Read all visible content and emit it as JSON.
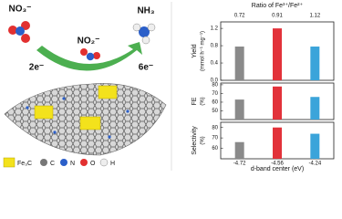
{
  "illustration": {
    "species": [
      "NO₃⁻",
      "NO₂⁻",
      "NH₃"
    ],
    "electrons": [
      "2e⁻",
      "6e⁻"
    ],
    "legend": [
      "Fe₃C",
      "C",
      "N",
      "O",
      "H"
    ]
  },
  "chart_data": [
    {
      "type": "bar",
      "ylabel": "Yield",
      "yunit": "(mmol h⁻¹ mg⁻¹)",
      "x2label": "Ratio of Fe³⁺/Fe²⁺",
      "x2categories": [
        "0.72",
        "0.91",
        "1.12"
      ],
      "colors": [
        "#8a8a8a",
        "#e2323a",
        "#3ba4da"
      ],
      "values": [
        0.78,
        1.2,
        0.78
      ],
      "ylim": [
        0,
        1.35
      ],
      "yticks": [
        {
          "value": 0,
          "label": "0.0"
        },
        {
          "value": 0.4,
          "label": "0.4"
        },
        {
          "value": 0.8,
          "label": "0.8"
        },
        {
          "value": 1.2,
          "label": "1.2"
        }
      ]
    },
    {
      "type": "bar",
      "ylabel": "FE",
      "yunit": "(%)",
      "colors": [
        "#8a8a8a",
        "#e2323a",
        "#3ba4da"
      ],
      "values": [
        63,
        78,
        66
      ],
      "ylim": [
        40,
        82
      ],
      "yticks": [
        50,
        60,
        70,
        80
      ]
    },
    {
      "type": "bar",
      "ylabel": "Selectivity",
      "yunit": "(%)",
      "xlabel": "d-band center (eV)",
      "categories": [
        "-4.72",
        "-4.56",
        "-4.24"
      ],
      "colors": [
        "#8a8a8a",
        "#e2323a",
        "#3ba4da"
      ],
      "values": [
        66,
        80,
        74
      ],
      "ylim": [
        50,
        85
      ],
      "yticks": [
        60,
        70,
        80
      ]
    }
  ]
}
